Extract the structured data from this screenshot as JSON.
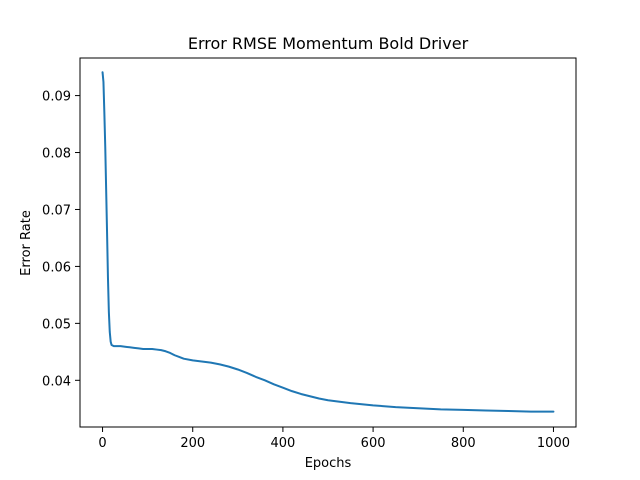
{
  "chart_data": {
    "type": "line",
    "title": "Error RMSE Momentum Bold Driver",
    "xlabel": "Epochs",
    "ylabel": "Error Rate",
    "xlim": [
      -50,
      1050
    ],
    "ylim": [
      0.0318,
      0.0966
    ],
    "x_ticks": [
      0,
      200,
      400,
      600,
      800,
      1000
    ],
    "y_ticks": [
      0.04,
      0.05,
      0.06,
      0.07,
      0.08,
      0.09
    ],
    "x_tick_labels": [
      "0",
      "200",
      "400",
      "600",
      "800",
      "1000"
    ],
    "y_tick_labels": [
      "0.04",
      "0.05",
      "0.06",
      "0.07",
      "0.08",
      "0.09"
    ],
    "grid": false,
    "series": [
      {
        "color": "#1f77b4",
        "x": [
          0,
          2,
          4,
          6,
          8,
          10,
          12,
          14,
          16,
          18,
          20,
          25,
          30,
          40,
          50,
          60,
          70,
          80,
          90,
          100,
          110,
          120,
          130,
          140,
          150,
          160,
          170,
          180,
          200,
          220,
          240,
          260,
          280,
          300,
          320,
          340,
          360,
          380,
          400,
          420,
          440,
          460,
          480,
          500,
          550,
          600,
          650,
          700,
          750,
          800,
          850,
          900,
          950,
          1000
        ],
        "y": [
          0.0941,
          0.0924,
          0.087,
          0.081,
          0.0735,
          0.066,
          0.058,
          0.052,
          0.0485,
          0.0468,
          0.0462,
          0.046,
          0.046,
          0.046,
          0.0459,
          0.0458,
          0.0457,
          0.0456,
          0.0455,
          0.0455,
          0.0455,
          0.0454,
          0.0453,
          0.0451,
          0.0448,
          0.0444,
          0.0441,
          0.0438,
          0.0435,
          0.0433,
          0.0431,
          0.0428,
          0.0424,
          0.0419,
          0.0413,
          0.0406,
          0.04,
          0.0393,
          0.0387,
          0.0381,
          0.0376,
          0.0372,
          0.0368,
          0.0365,
          0.036,
          0.0356,
          0.0353,
          0.0351,
          0.0349,
          0.0348,
          0.0347,
          0.0346,
          0.0345,
          0.0345
        ]
      }
    ]
  }
}
